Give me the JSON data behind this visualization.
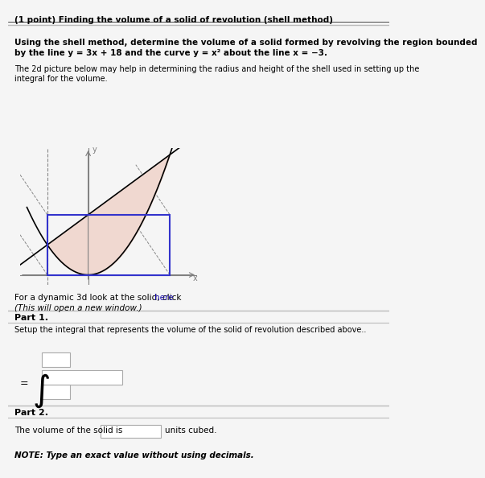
{
  "title": "(1 point) Finding the volume of a solid of revolution (shell method)",
  "bold_text": "Using the shell method, determine the volume of a solid formed by revolving the region bounded\nby the line y = 3x + 18 and the curve y = x² about the line x = −3.",
  "helper_text": "The 2d picture below may help in determining the radius and height of the shell used in setting up the\nintegral for the volume.",
  "dynamic_text": "For a dynamic 3d look at the solid, click ",
  "dynamic_link": "here",
  "dynamic_subtext": "(This will open a new window.)",
  "part1_label": "Part 1.",
  "part1_text": "Setup the integral that represents the volume of the solid of revolution described above..",
  "part2_label": "Part 2.",
  "part2_text": "The volume of the solid is",
  "part2_units": "units cubed.",
  "note_text": "NOTE: Type an exact value without using decimals.",
  "bg_color": "#f5f5f5",
  "plot_bg": "#ffffff",
  "blue_box_color": "#3333cc",
  "filled_color": "#f0d8d0",
  "line_color": "#000000",
  "dashed_color": "#888888"
}
